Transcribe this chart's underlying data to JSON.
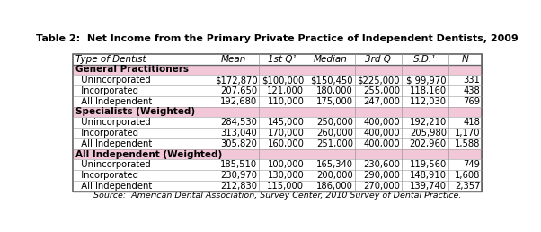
{
  "title": "Table 2:  Net Income from the Primary Private Practice of Independent Dentists, 2009",
  "source": "Source:  American Dental Association, Survey Center, 2010 Survey of Dental Practice.",
  "col_headers": [
    "Type of Dentist",
    "Mean",
    "1st Q¹",
    "Median",
    "3rd Q",
    "S.D.¹",
    "N"
  ],
  "rows": [
    {
      "label": "General Practitioners",
      "type": "header",
      "values": []
    },
    {
      "label": "  Unincorporated",
      "type": "data",
      "values": [
        "$172,870",
        "$100,000",
        "$150,450",
        "$225,000",
        "$ 99,970",
        "331"
      ]
    },
    {
      "label": "  Incorporated",
      "type": "data",
      "values": [
        "207,650",
        "121,000",
        "180,000",
        "255,000",
        "118,160",
        "438"
      ]
    },
    {
      "label": "  All Independent",
      "type": "data",
      "values": [
        "192,680",
        "110,000",
        "175,000",
        "247,000",
        "112,030",
        "769"
      ]
    },
    {
      "label": "Specialists (Weighted)",
      "type": "header",
      "values": []
    },
    {
      "label": "  Unincorporated",
      "type": "data",
      "values": [
        "284,530",
        "145,000",
        "250,000",
        "400,000",
        "192,210",
        "418"
      ]
    },
    {
      "label": "  Incorporated",
      "type": "data",
      "values": [
        "313,040",
        "170,000",
        "260,000",
        "400,000",
        "205,980",
        "1,170"
      ]
    },
    {
      "label": "  All Independent",
      "type": "data",
      "values": [
        "305,820",
        "160,000",
        "251,000",
        "400,000",
        "202,960",
        "1,588"
      ]
    },
    {
      "label": "All Independent (Weighted)",
      "type": "header",
      "values": []
    },
    {
      "label": "  Unincorporated",
      "type": "data",
      "values": [
        "185,510",
        "100,000",
        "165,340",
        "230,600",
        "119,560",
        "749"
      ]
    },
    {
      "label": "  Incorporated",
      "type": "data",
      "values": [
        "230,970",
        "130,000",
        "200,000",
        "290,000",
        "148,910",
        "1,608"
      ]
    },
    {
      "label": "  All Independent",
      "type": "data",
      "values": [
        "212,830",
        "115,000",
        "186,000",
        "270,000",
        "139,740",
        "2,357"
      ]
    }
  ],
  "header_bg": "#f2c8d8",
  "row_bg": "#ffffff",
  "outer_border_color": "#666666",
  "inner_line_color": "#999999",
  "title_fontsize": 8.0,
  "header_fontsize": 7.5,
  "data_fontsize": 7.2,
  "source_fontsize": 6.8,
  "col_widths_rel": [
    2.6,
    1.0,
    0.9,
    0.95,
    0.9,
    0.9,
    0.65
  ]
}
